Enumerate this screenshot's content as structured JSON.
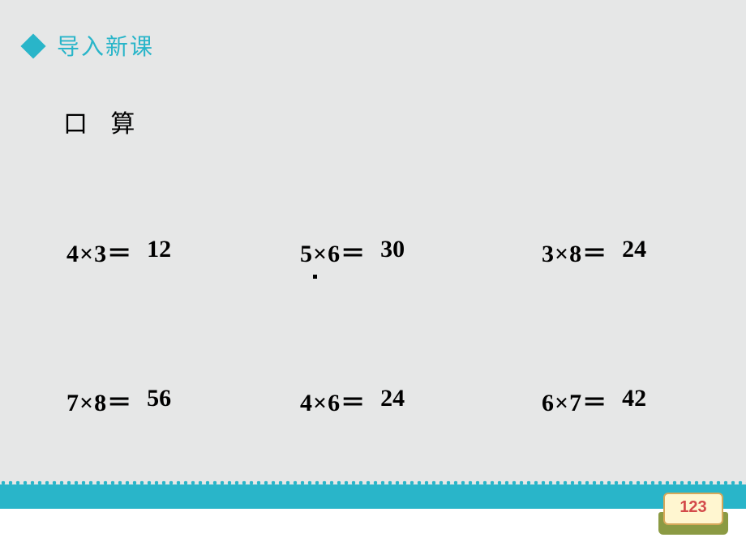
{
  "header": {
    "title": "导入新课",
    "accent_color": "#29b5c9"
  },
  "subtitle": "口 算",
  "background_color": "#e6e7e7",
  "text_color": "#000000",
  "equations": {
    "row1": [
      {
        "expr": "4×3＝",
        "answer": "12"
      },
      {
        "expr": "5×6＝",
        "answer": "30"
      },
      {
        "expr": "3×8＝",
        "answer": "24"
      }
    ],
    "row2": [
      {
        "expr": "7×8＝",
        "answer": "56"
      },
      {
        "expr": "4×6＝",
        "answer": "24"
      },
      {
        "expr": "6×7＝",
        "answer": "42"
      }
    ]
  },
  "equation_style": {
    "font_family": "Times New Roman",
    "font_size_pt": 22,
    "font_weight": "bold"
  },
  "footer": {
    "band_color": "#29b5c9",
    "bottom_color": "#ffffff",
    "book_label": "123",
    "book_page_color": "#fff6d0",
    "book_border_color": "#d6a85a",
    "book_base_color": "#8b9a43",
    "book_label_color": "#d34a4a"
  }
}
